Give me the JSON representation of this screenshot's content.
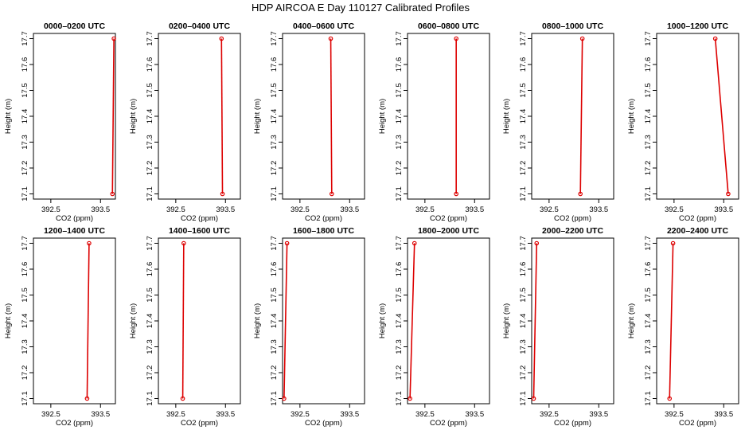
{
  "figure": {
    "title": "HDP AIRCOA E  Day 110127  Calibrated Profiles"
  },
  "colors": {
    "line": "#dd0000",
    "frame": "#000000",
    "background": "#ffffff"
  },
  "chart_data": [
    {
      "type": "line",
      "title": "0000–0200 UTC",
      "xlabel": "CO2 (ppm)",
      "ylabel": "Height (m)",
      "xlim": [
        392.15,
        393.8
      ],
      "ylim": [
        17.08,
        17.72
      ],
      "xticks": [
        392.5,
        393.5
      ],
      "yticks": [
        17.1,
        17.2,
        17.3,
        17.4,
        17.5,
        17.6,
        17.7
      ],
      "xtick_labels": [
        "392.5",
        "393.5"
      ],
      "ytick_labels": [
        "17.1",
        "17.2",
        "17.3",
        "17.4",
        "17.5",
        "17.6",
        "17.7"
      ],
      "grid": false,
      "series": [
        {
          "x": [
            393.74,
            393.77
          ],
          "y": [
            17.1,
            17.7
          ]
        }
      ]
    },
    {
      "type": "line",
      "title": "0200–0400 UTC",
      "xlabel": "CO2 (ppm)",
      "ylabel": "Height (m)",
      "xlim": [
        392.15,
        393.8
      ],
      "ylim": [
        17.08,
        17.72
      ],
      "xticks": [
        392.5,
        393.5
      ],
      "yticks": [
        17.1,
        17.2,
        17.3,
        17.4,
        17.5,
        17.6,
        17.7
      ],
      "xtick_labels": [
        "392.5",
        "393.5"
      ],
      "ytick_labels": [
        "17.1",
        "17.2",
        "17.3",
        "17.4",
        "17.5",
        "17.6",
        "17.7"
      ],
      "grid": false,
      "series": [
        {
          "x": [
            393.44,
            393.42
          ],
          "y": [
            17.1,
            17.7
          ]
        }
      ]
    },
    {
      "type": "line",
      "title": "0400–0600 UTC",
      "xlabel": "CO2 (ppm)",
      "ylabel": "Height (m)",
      "xlim": [
        392.15,
        393.8
      ],
      "ylim": [
        17.08,
        17.72
      ],
      "xticks": [
        392.5,
        393.5
      ],
      "yticks": [
        17.1,
        17.2,
        17.3,
        17.4,
        17.5,
        17.6,
        17.7
      ],
      "xtick_labels": [
        "392.5",
        "393.5"
      ],
      "ytick_labels": [
        "17.1",
        "17.2",
        "17.3",
        "17.4",
        "17.5",
        "17.6",
        "17.7"
      ],
      "grid": false,
      "series": [
        {
          "x": [
            393.14,
            393.12
          ],
          "y": [
            17.1,
            17.7
          ]
        }
      ]
    },
    {
      "type": "line",
      "title": "0600–0800 UTC",
      "xlabel": "CO2 (ppm)",
      "ylabel": "Height (m)",
      "xlim": [
        392.15,
        393.8
      ],
      "ylim": [
        17.08,
        17.72
      ],
      "xticks": [
        392.5,
        393.5
      ],
      "yticks": [
        17.1,
        17.2,
        17.3,
        17.4,
        17.5,
        17.6,
        17.7
      ],
      "xtick_labels": [
        "392.5",
        "393.5"
      ],
      "ytick_labels": [
        "17.1",
        "17.2",
        "17.3",
        "17.4",
        "17.5",
        "17.6",
        "17.7"
      ],
      "grid": false,
      "series": [
        {
          "x": [
            393.13,
            393.13
          ],
          "y": [
            17.1,
            17.7
          ]
        }
      ]
    },
    {
      "type": "line",
      "title": "0800–1000 UTC",
      "xlabel": "CO2 (ppm)",
      "ylabel": "Height (m)",
      "xlim": [
        392.15,
        393.8
      ],
      "ylim": [
        17.08,
        17.72
      ],
      "xticks": [
        392.5,
        393.5
      ],
      "yticks": [
        17.1,
        17.2,
        17.3,
        17.4,
        17.5,
        17.6,
        17.7
      ],
      "xtick_labels": [
        "392.5",
        "393.5"
      ],
      "ytick_labels": [
        "17.1",
        "17.2",
        "17.3",
        "17.4",
        "17.5",
        "17.6",
        "17.7"
      ],
      "grid": false,
      "series": [
        {
          "x": [
            393.13,
            393.17
          ],
          "y": [
            17.1,
            17.7
          ]
        }
      ]
    },
    {
      "type": "line",
      "title": "1000–1200 UTC",
      "xlabel": "CO2 (ppm)",
      "ylabel": "Height (m)",
      "xlim": [
        392.15,
        393.8
      ],
      "ylim": [
        17.08,
        17.72
      ],
      "xticks": [
        392.5,
        393.5
      ],
      "yticks": [
        17.1,
        17.2,
        17.3,
        17.4,
        17.5,
        17.6,
        17.7
      ],
      "xtick_labels": [
        "392.5",
        "393.5"
      ],
      "ytick_labels": [
        "17.1",
        "17.2",
        "17.3",
        "17.4",
        "17.5",
        "17.6",
        "17.7"
      ],
      "grid": false,
      "series": [
        {
          "x": [
            393.59,
            393.33
          ],
          "y": [
            17.1,
            17.7
          ]
        }
      ]
    },
    {
      "type": "line",
      "title": "1200–1400 UTC",
      "xlabel": "CO2 (ppm)",
      "ylabel": "Height (m)",
      "xlim": [
        392.15,
        393.8
      ],
      "ylim": [
        17.08,
        17.72
      ],
      "xticks": [
        392.5,
        393.5
      ],
      "yticks": [
        17.1,
        17.2,
        17.3,
        17.4,
        17.5,
        17.6,
        17.7
      ],
      "xtick_labels": [
        "392.5",
        "393.5"
      ],
      "ytick_labels": [
        "17.1",
        "17.2",
        "17.3",
        "17.4",
        "17.5",
        "17.6",
        "17.7"
      ],
      "grid": false,
      "series": [
        {
          "x": [
            393.23,
            393.27
          ],
          "y": [
            17.1,
            17.7
          ]
        }
      ]
    },
    {
      "type": "line",
      "title": "1400–1600 UTC",
      "xlabel": "CO2 (ppm)",
      "ylabel": "Height (m)",
      "xlim": [
        392.15,
        393.8
      ],
      "ylim": [
        17.08,
        17.72
      ],
      "xticks": [
        392.5,
        393.5
      ],
      "yticks": [
        17.1,
        17.2,
        17.3,
        17.4,
        17.5,
        17.6,
        17.7
      ],
      "xtick_labels": [
        "392.5",
        "393.5"
      ],
      "ytick_labels": [
        "17.1",
        "17.2",
        "17.3",
        "17.4",
        "17.5",
        "17.6",
        "17.7"
      ],
      "grid": false,
      "series": [
        {
          "x": [
            392.64,
            392.66
          ],
          "y": [
            17.1,
            17.7
          ]
        }
      ]
    },
    {
      "type": "line",
      "title": "1600–1800 UTC",
      "xlabel": "CO2 (ppm)",
      "ylabel": "Height (m)",
      "xlim": [
        392.15,
        393.8
      ],
      "ylim": [
        17.08,
        17.72
      ],
      "xticks": [
        392.5,
        393.5
      ],
      "yticks": [
        17.1,
        17.2,
        17.3,
        17.4,
        17.5,
        17.6,
        17.7
      ],
      "xtick_labels": [
        "392.5",
        "393.5"
      ],
      "ytick_labels": [
        "17.1",
        "17.2",
        "17.3",
        "17.4",
        "17.5",
        "17.6",
        "17.7"
      ],
      "grid": false,
      "series": [
        {
          "x": [
            392.18,
            392.24
          ],
          "y": [
            17.1,
            17.7
          ]
        }
      ]
    },
    {
      "type": "line",
      "title": "1800–2000 UTC",
      "xlabel": "CO2 (ppm)",
      "ylabel": "Height (m)",
      "xlim": [
        392.15,
        393.8
      ],
      "ylim": [
        17.08,
        17.72
      ],
      "xticks": [
        392.5,
        393.5
      ],
      "yticks": [
        17.1,
        17.2,
        17.3,
        17.4,
        17.5,
        17.6,
        17.7
      ],
      "xtick_labels": [
        "392.5",
        "393.5"
      ],
      "ytick_labels": [
        "17.1",
        "17.2",
        "17.3",
        "17.4",
        "17.5",
        "17.6",
        "17.7"
      ],
      "grid": false,
      "series": [
        {
          "x": [
            392.2,
            392.29
          ],
          "y": [
            17.1,
            17.7
          ]
        }
      ]
    },
    {
      "type": "line",
      "title": "2000–2200 UTC",
      "xlabel": "CO2 (ppm)",
      "ylabel": "Height (m)",
      "xlim": [
        392.15,
        393.8
      ],
      "ylim": [
        17.08,
        17.72
      ],
      "xticks": [
        392.5,
        393.5
      ],
      "yticks": [
        17.1,
        17.2,
        17.3,
        17.4,
        17.5,
        17.6,
        17.7
      ],
      "xtick_labels": [
        "392.5",
        "393.5"
      ],
      "ytick_labels": [
        "17.1",
        "17.2",
        "17.3",
        "17.4",
        "17.5",
        "17.6",
        "17.7"
      ],
      "grid": false,
      "series": [
        {
          "x": [
            392.19,
            392.25
          ],
          "y": [
            17.1,
            17.7
          ]
        }
      ]
    },
    {
      "type": "line",
      "title": "2200–2400 UTC",
      "xlabel": "CO2 (ppm)",
      "ylabel": "Height (m)",
      "xlim": [
        392.15,
        393.8
      ],
      "ylim": [
        17.08,
        17.72
      ],
      "xticks": [
        392.5,
        393.5
      ],
      "yticks": [
        17.1,
        17.2,
        17.3,
        17.4,
        17.5,
        17.6,
        17.7
      ],
      "xtick_labels": [
        "392.5",
        "393.5"
      ],
      "ytick_labels": [
        "17.1",
        "17.2",
        "17.3",
        "17.4",
        "17.5",
        "17.6",
        "17.7"
      ],
      "grid": false,
      "series": [
        {
          "x": [
            392.41,
            392.48
          ],
          "y": [
            17.1,
            17.7
          ]
        }
      ]
    }
  ]
}
